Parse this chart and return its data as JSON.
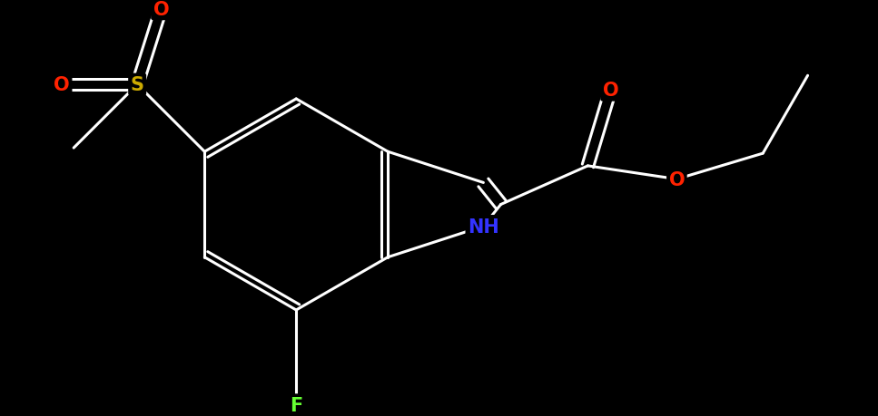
{
  "background_color": "#000000",
  "atom_colors": {
    "C": "#ffffff",
    "N": "#3333ff",
    "O": "#ff2200",
    "S": "#ccaa00",
    "F": "#66ff33",
    "H": "#ffffff"
  },
  "bond_color": "#ffffff",
  "bond_width": 2.2,
  "font_size_atom": 15,
  "figsize": [
    9.67,
    4.6
  ],
  "dpi": 100
}
